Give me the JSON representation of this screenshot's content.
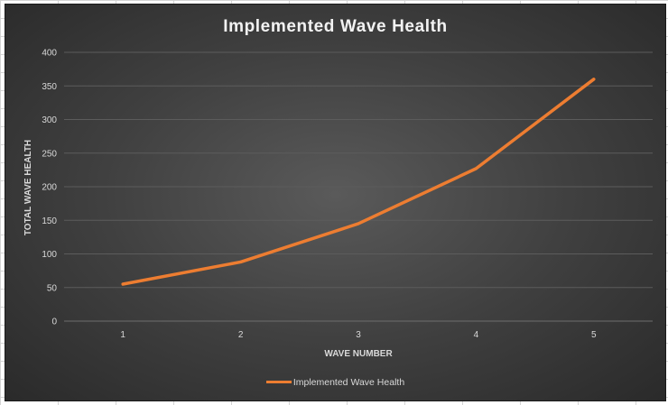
{
  "chart_data": {
    "type": "line",
    "title": "Implemented Wave Health",
    "xlabel": "WAVE NUMBER",
    "ylabel": "TOTAL WAVE HEALTH",
    "categories": [
      "1",
      "2",
      "3",
      "4",
      "5"
    ],
    "series": [
      {
        "name": "Implemented Wave Health",
        "values": [
          55,
          88,
          145,
          227,
          360
        ],
        "color": "#ed7d31"
      }
    ],
    "ylim": [
      0,
      400
    ],
    "yticks": [
      0,
      50,
      100,
      150,
      200,
      250,
      300,
      350,
      400
    ],
    "grid": true,
    "legend_position": "bottom"
  }
}
